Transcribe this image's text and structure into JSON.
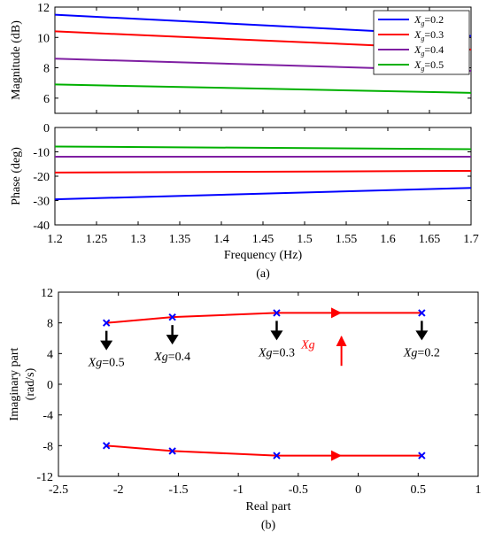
{
  "chart_data": [
    {
      "type": "line",
      "panel": "magnitude",
      "xlabel": "",
      "ylabel": "Magnitude (dB)",
      "xlim": [
        1.2,
        1.7
      ],
      "ylim": [
        5,
        12
      ],
      "yticks": [
        6,
        8,
        10,
        12
      ],
      "grid": false,
      "legend_placement": "top-right",
      "series": [
        {
          "name_sub": "g",
          "name_val": "=0.2",
          "color": "#0000ff",
          "x": [
            1.2,
            1.7
          ],
          "y": [
            11.5,
            10.1
          ]
        },
        {
          "name_sub": "g",
          "name_val": "=0.3",
          "color": "#ff0000",
          "x": [
            1.2,
            1.7
          ],
          "y": [
            10.4,
            9.2
          ]
        },
        {
          "name_sub": "g",
          "name_val": "=0.4",
          "color": "#7f1fa2",
          "x": [
            1.2,
            1.7
          ],
          "y": [
            8.6,
            7.8
          ]
        },
        {
          "name_sub": "g",
          "name_val": "=0.5",
          "color": "#00b000",
          "x": [
            1.2,
            1.7
          ],
          "y": [
            6.9,
            6.35
          ]
        }
      ]
    },
    {
      "type": "line",
      "panel": "phase",
      "xlabel": "Frequency  (Hz)",
      "ylabel": "Phase  (deg)",
      "caption": "(a)",
      "xlim": [
        1.2,
        1.7
      ],
      "ylim": [
        -40,
        0
      ],
      "xticks": [
        1.2,
        1.25,
        1.3,
        1.35,
        1.4,
        1.45,
        1.5,
        1.55,
        1.6,
        1.65,
        1.7
      ],
      "yticks": [
        -40,
        -30,
        -20,
        -10,
        0
      ],
      "grid": false,
      "series": [
        {
          "color": "#0000ff",
          "x": [
            1.2,
            1.7
          ],
          "y": [
            -29.5,
            -24.8
          ]
        },
        {
          "color": "#ff0000",
          "x": [
            1.2,
            1.7
          ],
          "y": [
            -18.5,
            -17.8
          ]
        },
        {
          "color": "#7f1fa2",
          "x": [
            1.2,
            1.7
          ],
          "y": [
            -12.0,
            -12.0
          ]
        },
        {
          "color": "#00b000",
          "x": [
            1.2,
            1.7
          ],
          "y": [
            -7.8,
            -8.9
          ]
        }
      ]
    },
    {
      "type": "scatter",
      "panel": "root-locus",
      "xlabel": "Real part",
      "ylabel_line1": "Imaginary part",
      "ylabel_line2": "(rad/s)",
      "caption": "(b)",
      "xlim": [
        -2.5,
        1
      ],
      "ylim": [
        -12,
        12
      ],
      "xticks": [
        -2.5,
        -2,
        -1.5,
        -1,
        -0.5,
        0,
        0.5,
        1
      ],
      "yticks": [
        -12,
        -8,
        -4,
        0,
        4,
        8,
        12
      ],
      "curve_color": "#ff0000",
      "marker_color": "#0000ff",
      "upper_points": [
        {
          "x": -2.1,
          "y": 8.0,
          "label_var": "X",
          "label_sub": "g",
          "label_val": "=0.5"
        },
        {
          "x": -1.55,
          "y": 8.75,
          "label_var": "X",
          "label_sub": "g",
          "label_val": "=0.4"
        },
        {
          "x": -0.68,
          "y": 9.3,
          "label_var": "X",
          "label_sub": "g",
          "label_val": "=0.3"
        },
        {
          "x": 0.53,
          "y": 9.3,
          "label_var": "X",
          "label_sub": "g",
          "label_val": "=0.2"
        }
      ],
      "lower_points": [
        {
          "x": -2.1,
          "y": -8.0
        },
        {
          "x": -1.55,
          "y": -8.7
        },
        {
          "x": -0.68,
          "y": -9.3
        },
        {
          "x": 0.53,
          "y": -9.3
        }
      ],
      "annotation": {
        "var": "X",
        "sub": "g",
        "color": "#ff0000",
        "direction": "up"
      }
    }
  ]
}
